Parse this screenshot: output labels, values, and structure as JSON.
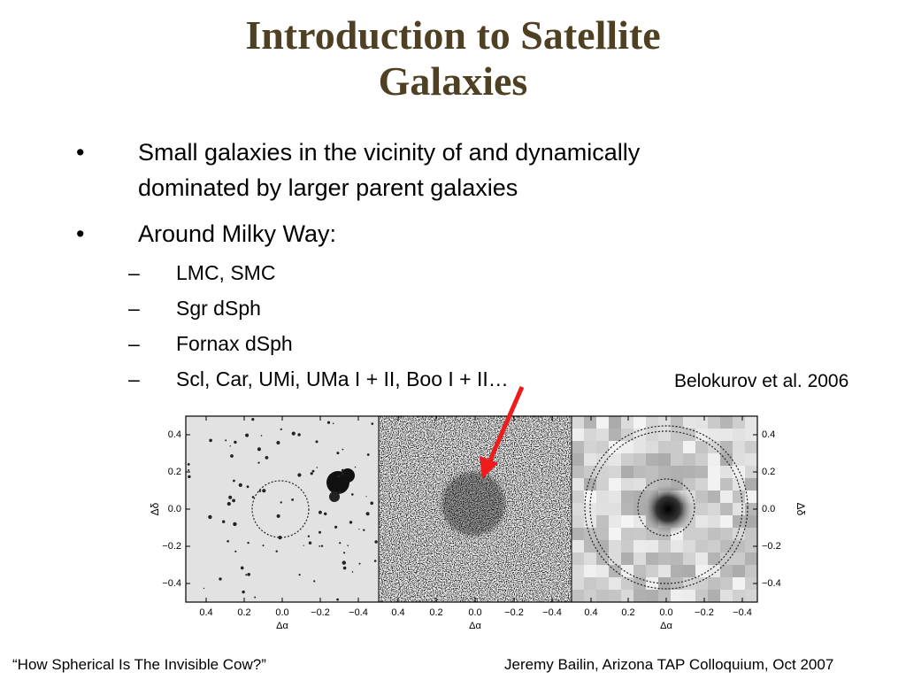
{
  "slide": {
    "title_lines": [
      "Introduction to Satellite",
      "Galaxies"
    ],
    "bullets": [
      {
        "mark": "•",
        "lines": [
          "Small galaxies in the vicinity of and dynamically",
          "dominated by larger parent galaxies"
        ]
      },
      {
        "mark": "•",
        "lines": [
          "Around Milky Way:"
        ]
      }
    ],
    "sub_bullets": [
      {
        "mark": "–",
        "text": "LMC, SMC"
      },
      {
        "mark": "–",
        "text": "Sgr dSph"
      },
      {
        "mark": "–",
        "text": "Fornax dSph"
      },
      {
        "mark": "–",
        "text": "Scl, Car, UMi, UMa I + II, Boo I + II…"
      }
    ],
    "figure_credit": "Belokurov et al. 2006",
    "figure": {
      "x_ticks": [
        "0.4",
        "0.2",
        "0.0",
        "−0.2",
        "−0.4"
      ],
      "y_ticks": [
        "0.4",
        "0.2",
        "0.0",
        "−0.2",
        "−0.4"
      ],
      "x_axis_label": "Δα",
      "y_axis_label": "Δδ",
      "arrow_color": "#ee1c1c"
    },
    "footer_left": "“How Spherical Is The Invisible Cow?”",
    "footer_right": "Jeremy Bailin, Arizona TAP Colloquium, Oct 2007",
    "colors": {
      "title": "#4f4023",
      "text": "#000000"
    }
  }
}
